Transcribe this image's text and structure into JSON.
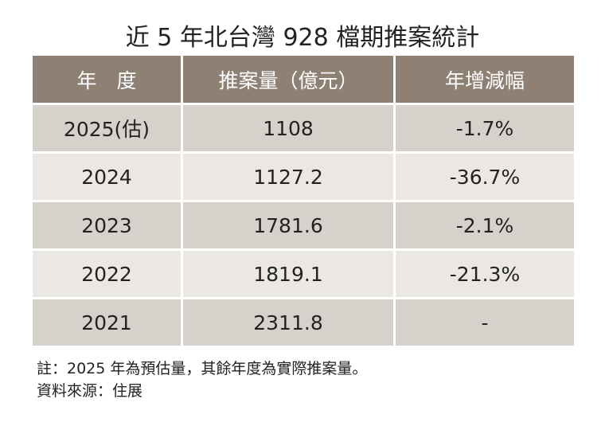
{
  "header": {
    "title": "近 5 年北台灣 928 檔期推案統計"
  },
  "table": {
    "columns": [
      "年　度",
      "推案量（億元）",
      "年增減幅"
    ],
    "rows": [
      [
        "2025(估)",
        "1108",
        "-1.7%"
      ],
      [
        "2024",
        "1127.2",
        "-36.7%"
      ],
      [
        "2023",
        "1781.6",
        "-2.1%"
      ],
      [
        "2022",
        "1819.1",
        "-21.3%"
      ],
      [
        "2021",
        "2311.8",
        "-"
      ]
    ]
  },
  "notes": [
    "註：2025 年為預估量，其餘年度為實際推案量。",
    "資料來源：住展"
  ]
}
